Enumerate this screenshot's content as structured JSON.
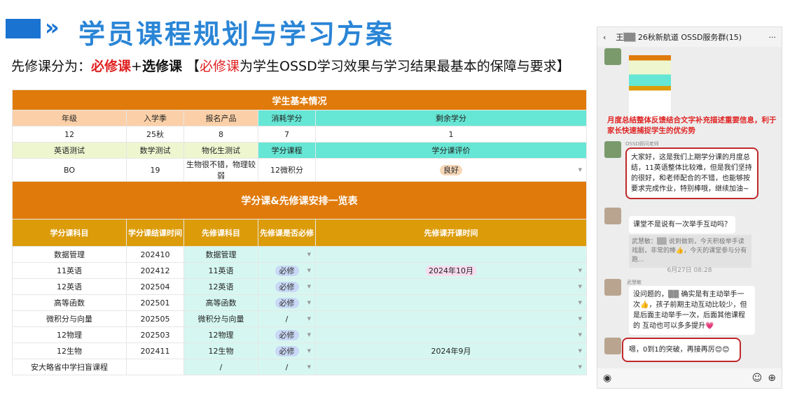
{
  "header": {
    "title": "学员课程规划与学习方案",
    "chevrons": "»"
  },
  "subtitle": {
    "p1": "先修课分为：",
    "p2": "必修课",
    "p3": "+",
    "p4": "选修课",
    "p5": " 【",
    "p6": "必修课",
    "p7": "为学生OSSD学习效果与学习结果最基本的保障与要求】"
  },
  "basic": {
    "title": "学生基本情况",
    "h1": [
      "年级",
      "入学季",
      "报名产品",
      "消耗学分",
      "剩余学分"
    ],
    "v1": [
      "12",
      "25秋",
      "8",
      "7",
      "1"
    ],
    "h2": [
      "英语测试",
      "数学测试",
      "物化生测试",
      "学分课程",
      "学分课评价"
    ],
    "v2": [
      "BO",
      "19",
      "生物很不错，物理较弱",
      "12微积分",
      "良好"
    ]
  },
  "schedule": {
    "title": "学分课&先修课安排一览表",
    "headers": [
      "学分课科目",
      "学分课结课时间",
      "先修课科目",
      "先修课是否必修",
      "先修课开课时间"
    ],
    "rows": [
      [
        "数据管理",
        "202410",
        "数据管理",
        "",
        ""
      ],
      [
        "11英语",
        "202412",
        "11英语",
        "必修",
        "2024年10月"
      ],
      [
        "12英语",
        "202504",
        "12英语",
        "必修",
        ""
      ],
      [
        "高等函数",
        "202501",
        "高等函数",
        "必修",
        ""
      ],
      [
        "微积分与向量",
        "202505",
        "微积分与向量",
        "/",
        ""
      ],
      [
        "12物理",
        "202503",
        "12物理",
        "必修",
        ""
      ],
      [
        "12生物",
        "202411",
        "12生物",
        "必修",
        "2024年9月"
      ],
      [
        "安大略省中学扫盲课程",
        "",
        "/",
        "/",
        ""
      ]
    ]
  },
  "chat": {
    "title": "王▒▒ 26秋新航道 OSSD服务群(15)",
    "more": "···",
    "back": "‹",
    "note": "月度总结整体反馈结合文字补充描述重要信息，利于家长快速捕捉学生的优劣势",
    "msg1": "大家好，这是我们上期学分课的月度总结，11英语整体比较难，但是我们坚持的很好，和老师配合的不错，也能够按要求完成作业，特别棒哦，继续加油~",
    "sender1": "OSSD顾问老师",
    "msg2": "课堂不是说有一次举手互动吗？",
    "quote": "武慧敏：▒▒ 说到做到，今天积极举手读戏剧，非常的棒👍，今天的课堂参与分有跑...",
    "time": "6月27日 08:28",
    "sender3": "武慧敏",
    "msg3": "没问题的，▒▒ 确实是有主动举手一次👍，孩子前期主动互动比较少，但是后面主动举手一次，后面其他课程的 互动也可以多多提升💗",
    "msg4": "嗯，0到1的突破，再接再厉😊😊"
  }
}
